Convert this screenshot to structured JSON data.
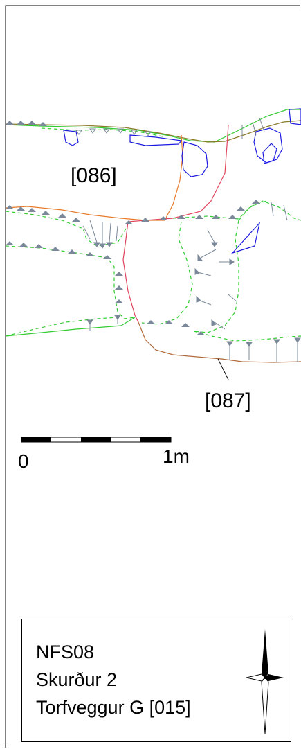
{
  "drawing": {
    "labels": {
      "context_086": "[086]",
      "context_087": "[087]"
    },
    "scale_bar": {
      "start_label": "0",
      "end_label": "1m"
    },
    "legend": {
      "site": "NFS08",
      "trench": "Skurður 2",
      "feature": "Torfveggur G [015]"
    },
    "colors": {
      "green_edge": "#33cc33",
      "orange_edge": "#e87b2c",
      "red_edge": "#e0445a",
      "blue_stones": "#1a1ae0",
      "brown_edge": "#b06a3a",
      "olive_edge": "#8a7a2a",
      "hachure": "#7a8899"
    },
    "icons": [
      "north-arrow-icon"
    ]
  }
}
